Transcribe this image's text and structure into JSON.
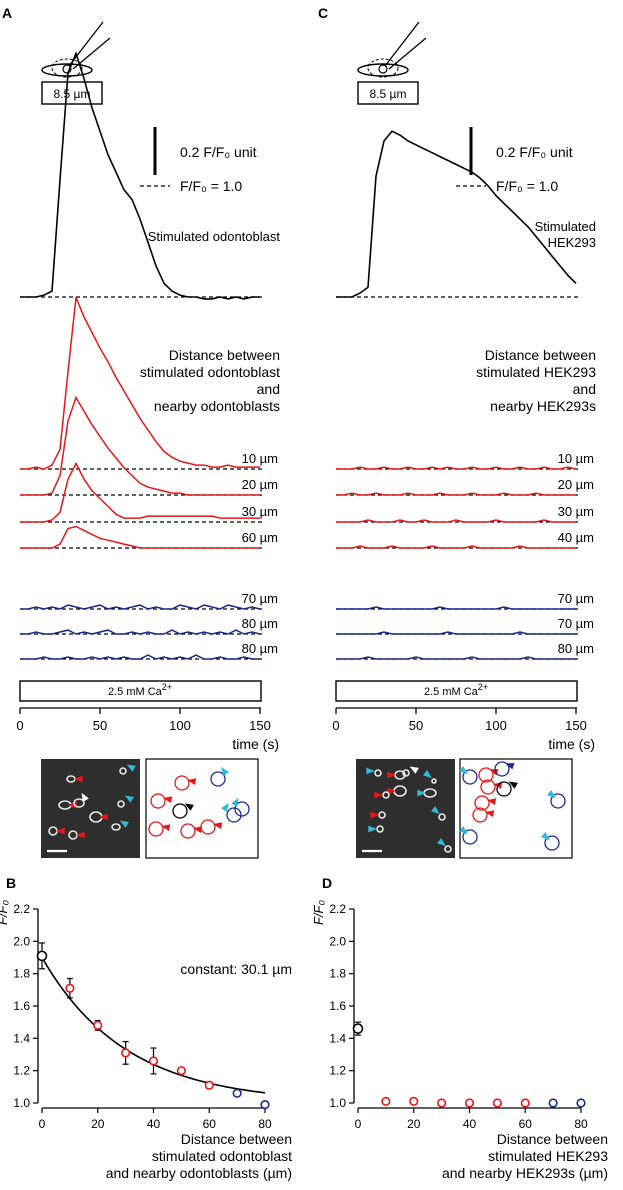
{
  "colors": {
    "black": "#000000",
    "red": "#e8161b",
    "blue": "#1b2a8a",
    "cyan": "#31b9d8",
    "dark_bg": "#2e2e2e"
  },
  "panel_a": {
    "letter": "A",
    "pipette_label": "8.5 µm",
    "scale_label": "0.2 F/F₀ unit",
    "baseline_label": "F/F₀ = 1.0",
    "stimulated_label": "Stimulated odontoblast",
    "distance_label": [
      "Distance between",
      "stimulated odontoblast",
      "and",
      "nearby odontoblasts"
    ],
    "red_traces": [
      {
        "label": "10 µm",
        "values": [
          1.0,
          1.0,
          1.01,
          1.0,
          1.02,
          1.1,
          1.5,
          1.88,
          1.78,
          1.7,
          1.62,
          1.55,
          1.47,
          1.4,
          1.33,
          1.26,
          1.2,
          1.14,
          1.09,
          1.06,
          1.04,
          1.03,
          1.02,
          1.02,
          1.01,
          1.01,
          1.02,
          1.01,
          1.01,
          1.01,
          1.01
        ]
      },
      {
        "label": "20 µm",
        "values": [
          1.0,
          1.0,
          1.0,
          1.0,
          1.01,
          1.1,
          1.38,
          1.5,
          1.43,
          1.36,
          1.3,
          1.24,
          1.19,
          1.14,
          1.1,
          1.06,
          1.04,
          1.03,
          1.02,
          1.01,
          1.01,
          1.0,
          1.0,
          1.0,
          1.0,
          1.0,
          1.0,
          1.0,
          1.0,
          1.0,
          1.0
        ]
      },
      {
        "label": "30 µm",
        "values": [
          1.0,
          1.0,
          1.0,
          1.0,
          1.01,
          1.05,
          1.22,
          1.3,
          1.22,
          1.16,
          1.12,
          1.08,
          1.04,
          1.02,
          1.02,
          1.02,
          1.03,
          1.03,
          1.03,
          1.03,
          1.03,
          1.03,
          1.03,
          1.03,
          1.03,
          1.02,
          1.02,
          1.02,
          1.02,
          1.02,
          1.02
        ]
      },
      {
        "label": "60 µm",
        "values": [
          1.0,
          1.0,
          1.0,
          1.0,
          1.0,
          1.02,
          1.1,
          1.11,
          1.09,
          1.07,
          1.05,
          1.04,
          1.03,
          1.02,
          1.01,
          1.0,
          1.0,
          1.0,
          1.0,
          1.0,
          1.0,
          1.0,
          1.0,
          1.0,
          1.0,
          1.0,
          1.0,
          1.0,
          1.0,
          1.0,
          1.0
        ]
      }
    ],
    "blue_traces": [
      {
        "label": "70 µm",
        "values": [
          1.0,
          1.0,
          1.01,
          1.0,
          1.01,
          1.0,
          1.02,
          1.01,
          1.0,
          1.01,
          1.02,
          1.0,
          1.01,
          1.0,
          1.01,
          1.02,
          1.0,
          1.01,
          1.0,
          1.0,
          1.02,
          1.01,
          1.0,
          1.02,
          1.01,
          1.0,
          1.02,
          1.01,
          1.0,
          1.01,
          1.0
        ]
      },
      {
        "label": "80 µm",
        "values": [
          1.0,
          1.0,
          1.01,
          1.0,
          1.0,
          1.01,
          1.02,
          1.0,
          1.01,
          1.0,
          1.01,
          1.02,
          1.0,
          1.0,
          1.01,
          1.0,
          1.01,
          1.0,
          1.0,
          1.02,
          1.0,
          1.01,
          1.0,
          1.01,
          1.0,
          1.01,
          1.0,
          1.02,
          1.0,
          1.01,
          1.0
        ]
      },
      {
        "label": "80 µm",
        "values": [
          1.0,
          1.0,
          1.0,
          1.01,
          1.0,
          1.0,
          1.01,
          1.0,
          1.0,
          1.01,
          1.0,
          1.01,
          1.0,
          1.01,
          1.0,
          1.0,
          1.02,
          1.0,
          1.01,
          1.0,
          1.01,
          1.0,
          1.02,
          1.0,
          1.0,
          1.01,
          1.0,
          1.0,
          1.01,
          1.0,
          1.0
        ]
      }
    ],
    "stim_values": [
      1.0,
      1.0,
      1.0,
      1.01,
      1.03,
      1.6,
      2.15,
      2.25,
      2.12,
      1.97,
      1.85,
      1.73,
      1.64,
      1.55,
      1.5,
      1.4,
      1.28,
      1.16,
      1.07,
      1.03,
      1.01,
      1.0,
      1.0,
      0.99,
      0.99,
      1.0,
      0.99,
      1.0,
      0.99,
      1.0,
      1.0
    ],
    "bar_label": "2.5 mM Ca",
    "bar_sup": "2+",
    "time_ticks": [
      "0",
      "50",
      "100",
      "150"
    ],
    "time_label": "time (s)"
  },
  "panel_c": {
    "letter": "C",
    "pipette_label": "8.5 µm",
    "scale_label": "0.2 F/F₀ unit",
    "baseline_label": "F/F₀ = 1.0",
    "stimulated_label": [
      "Stimulated",
      "HEK293"
    ],
    "distance_label": [
      "Distance between",
      "stimulated HEK293",
      "and",
      "nearby HEK293s"
    ],
    "red_traces": [
      {
        "label": "10 µm",
        "values": [
          1.0,
          1.0,
          1.0,
          1.01,
          1.0,
          1.0,
          1.01,
          1.0,
          1.0,
          1.01,
          1.0,
          1.0,
          1.01,
          1.0,
          1.01,
          1.0,
          1.0,
          1.01,
          1.0,
          1.0,
          1.01,
          1.0,
          1.0,
          1.01,
          1.0,
          1.0,
          1.01,
          1.0,
          1.0,
          1.01,
          1.0
        ]
      },
      {
        "label": "20 µm",
        "values": [
          1.0,
          1.0,
          1.01,
          1.0,
          1.0,
          1.01,
          1.0,
          1.0,
          1.0,
          1.01,
          1.0,
          1.0,
          1.0,
          1.01,
          1.0,
          1.0,
          1.0,
          1.01,
          1.0,
          1.0,
          1.0,
          1.01,
          1.0,
          1.0,
          1.0,
          1.01,
          1.0,
          1.0,
          1.0,
          1.0,
          1.0
        ]
      },
      {
        "label": "30 µm",
        "values": [
          1.0,
          1.0,
          1.0,
          1.0,
          1.01,
          1.0,
          1.0,
          1.0,
          1.01,
          1.0,
          1.0,
          1.01,
          1.0,
          1.0,
          1.0,
          1.01,
          1.0,
          1.0,
          1.0,
          1.0,
          1.01,
          1.0,
          1.0,
          1.0,
          1.0,
          1.0,
          1.01,
          1.0,
          1.0,
          1.0,
          1.0
        ]
      },
      {
        "label": "40 µm",
        "values": [
          1.0,
          1.0,
          1.0,
          1.01,
          1.0,
          1.0,
          1.0,
          1.01,
          1.0,
          1.0,
          1.0,
          1.0,
          1.01,
          1.0,
          1.0,
          1.0,
          1.0,
          1.01,
          1.0,
          1.0,
          1.0,
          1.0,
          1.0,
          1.01,
          1.0,
          1.0,
          1.0,
          1.0,
          1.0,
          1.0,
          1.0
        ]
      }
    ],
    "blue_traces": [
      {
        "label": "70 µm",
        "values": [
          1.0,
          1.0,
          1.0,
          1.0,
          1.0,
          1.01,
          1.0,
          1.0,
          1.0,
          1.0,
          1.0,
          1.0,
          1.0,
          1.01,
          1.0,
          1.0,
          1.0,
          1.0,
          1.0,
          1.0,
          1.0,
          1.01,
          1.0,
          1.0,
          1.0,
          1.0,
          1.0,
          1.0,
          1.0,
          1.0,
          1.0
        ]
      },
      {
        "label": "70 µm",
        "values": [
          1.0,
          1.0,
          1.0,
          1.0,
          1.0,
          1.0,
          1.01,
          1.0,
          1.0,
          1.0,
          1.0,
          1.0,
          1.0,
          1.0,
          1.01,
          1.0,
          1.0,
          1.0,
          1.0,
          1.0,
          1.0,
          1.0,
          1.0,
          1.01,
          1.0,
          1.0,
          1.0,
          1.0,
          1.0,
          1.0,
          1.0
        ]
      },
      {
        "label": "80 µm",
        "values": [
          1.0,
          1.0,
          1.0,
          1.0,
          1.01,
          1.0,
          1.0,
          1.0,
          1.0,
          1.0,
          1.01,
          1.0,
          1.0,
          1.0,
          1.0,
          1.0,
          1.0,
          1.01,
          1.0,
          1.0,
          1.0,
          1.0,
          1.0,
          1.0,
          1.01,
          1.0,
          1.0,
          1.0,
          1.0,
          1.0,
          1.0
        ]
      }
    ],
    "stim_values": [
      1.0,
      1.0,
      1.0,
      1.02,
      1.05,
      1.62,
      1.8,
      1.85,
      1.83,
      1.8,
      1.78,
      1.76,
      1.74,
      1.72,
      1.7,
      1.68,
      1.66,
      1.64,
      1.61,
      1.57,
      1.52,
      1.48,
      1.44,
      1.4,
      1.36,
      1.31,
      1.26,
      1.21,
      1.16,
      1.11,
      1.07
    ],
    "bar_label": "2.5 mM Ca",
    "bar_sup": "2+",
    "time_ticks": [
      "0",
      "50",
      "100",
      "150"
    ],
    "time_label": "time (s)"
  },
  "chart_data": [
    {
      "panel": "B",
      "type": "scatter",
      "title": "",
      "ylabel": "F/F₀",
      "xlabel": [
        "Distance between",
        "stimulated odontoblast",
        "and nearby odontoblasts (µm)"
      ],
      "annotation": "constant: 30.1 µm",
      "xlim": [
        0,
        80
      ],
      "ylim": [
        1.0,
        2.2
      ],
      "xticks": [
        "0",
        "20",
        "40",
        "60",
        "80"
      ],
      "yticks": [
        "1.0",
        "1.2",
        "1.4",
        "1.6",
        "1.8",
        "2.0",
        "2.2"
      ],
      "points": [
        {
          "x": 0,
          "y": 1.91,
          "err": 0.08,
          "group": "stimulated"
        },
        {
          "x": 10,
          "y": 1.71,
          "err": 0.06,
          "group": "red"
        },
        {
          "x": 20,
          "y": 1.48,
          "err": 0.03,
          "group": "red"
        },
        {
          "x": 30,
          "y": 1.31,
          "err": 0.07,
          "group": "red"
        },
        {
          "x": 40,
          "y": 1.26,
          "err": 0.08,
          "group": "red"
        },
        {
          "x": 50,
          "y": 1.2,
          "err": 0.02,
          "group": "red"
        },
        {
          "x": 60,
          "y": 1.11,
          "err": 0.02,
          "group": "red"
        },
        {
          "x": 70,
          "y": 1.06,
          "err": 0.0,
          "group": "blue"
        },
        {
          "x": 80,
          "y": 0.99,
          "err": 0.0,
          "group": "blue"
        }
      ],
      "fit": {
        "model": "exponential decay",
        "amplitude": 0.9,
        "constant_um": 30.1,
        "offset": 1.0
      }
    },
    {
      "panel": "D",
      "type": "scatter",
      "title": "",
      "ylabel": "F/F₀",
      "xlabel": [
        "Distance between",
        "stimulated HEK293",
        "and nearby HEK293s (µm)"
      ],
      "xlim": [
        0,
        80
      ],
      "ylim": [
        1.0,
        2.2
      ],
      "xticks": [
        "0",
        "20",
        "40",
        "60",
        "80"
      ],
      "yticks": [
        "1.0",
        "1.2",
        "1.4",
        "1.6",
        "1.8",
        "2.0",
        "2.2"
      ],
      "points": [
        {
          "x": 0,
          "y": 1.46,
          "err": 0.04,
          "group": "stimulated"
        },
        {
          "x": 10,
          "y": 1.01,
          "err": 0.0,
          "group": "red"
        },
        {
          "x": 20,
          "y": 1.01,
          "err": 0.0,
          "group": "red"
        },
        {
          "x": 30,
          "y": 1.0,
          "err": 0.0,
          "group": "red"
        },
        {
          "x": 40,
          "y": 1.0,
          "err": 0.0,
          "group": "red"
        },
        {
          "x": 50,
          "y": 1.0,
          "err": 0.0,
          "group": "red"
        },
        {
          "x": 60,
          "y": 1.0,
          "err": 0.0,
          "group": "red"
        },
        {
          "x": 70,
          "y": 1.0,
          "err": 0.0,
          "group": "blue"
        },
        {
          "x": 80,
          "y": 1.0,
          "err": 0.0,
          "group": "blue"
        }
      ]
    }
  ]
}
